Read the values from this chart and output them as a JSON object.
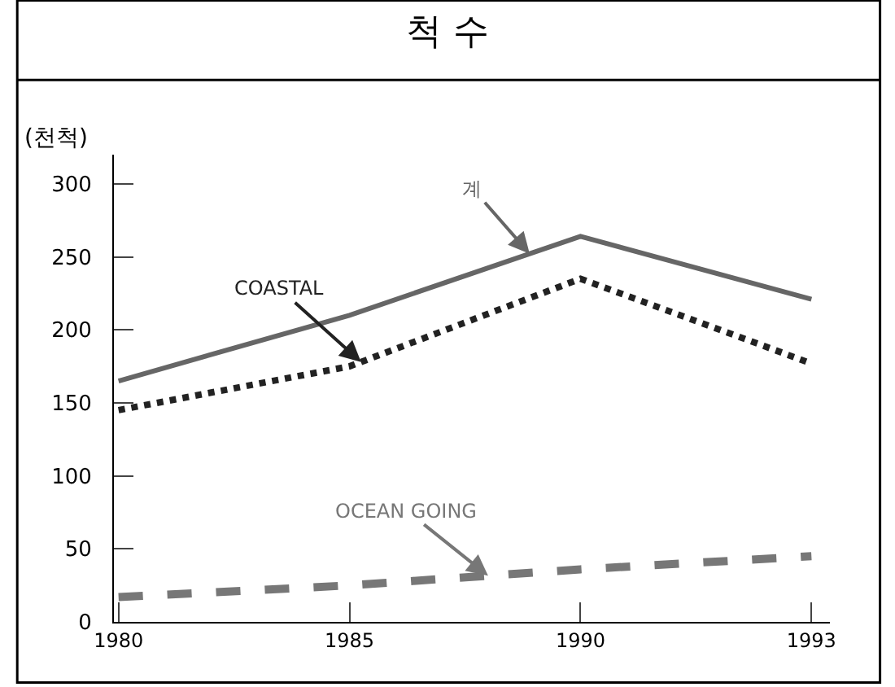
{
  "chart_data": {
    "type": "line",
    "title": "척 수",
    "ylabel": "(천척)",
    "categories": [
      "1980",
      "1985",
      "1990",
      "1993"
    ],
    "series": [
      {
        "name": "계",
        "color": "#666666",
        "values": [
          165,
          210,
          264,
          221
        ],
        "line_style": "solid"
      },
      {
        "name": "COASTAL",
        "color": "#222222",
        "values": [
          145,
          175,
          235,
          177
        ],
        "line_style": "dotted"
      },
      {
        "name": "OCEAN GOING",
        "color": "#777777",
        "values": [
          17,
          25,
          36,
          45
        ],
        "line_style": "dashed"
      }
    ],
    "ylim": [
      0,
      320
    ],
    "yticks": [
      0,
      50,
      100,
      150,
      200,
      250,
      300
    ],
    "legend": false,
    "marker": "none"
  }
}
